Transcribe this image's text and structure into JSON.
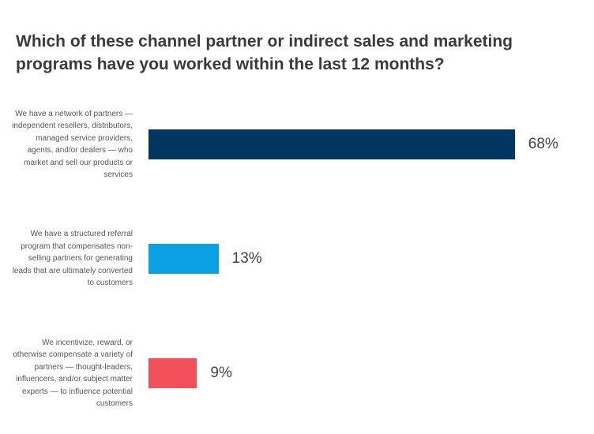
{
  "chart_data": {
    "type": "bar",
    "orientation": "horizontal",
    "title": "Which of these channel partner or indirect sales and marketing programs have you worked within the last 12 months?",
    "categories": [
      "We have a network of partners — independent resellers, distributors, managed service providers, agents, and/or dealers — who market and sell our products or services",
      "We have a structured referral program that compensates non-selling partners for generating leads that are ultimately converted to customers",
      "We incentivize, reward, or otherwise compensate a variety of partners — thought-leaders, influencers, and/or subject matter experts — to influence potential customers"
    ],
    "values": [
      68,
      13,
      9
    ],
    "value_labels": [
      "68%",
      "13%",
      "9%"
    ],
    "colors": [
      "#003660",
      "#0aa0e2",
      "#f0505a"
    ],
    "xlim": [
      0,
      100
    ],
    "grid": false,
    "legend": "none"
  }
}
